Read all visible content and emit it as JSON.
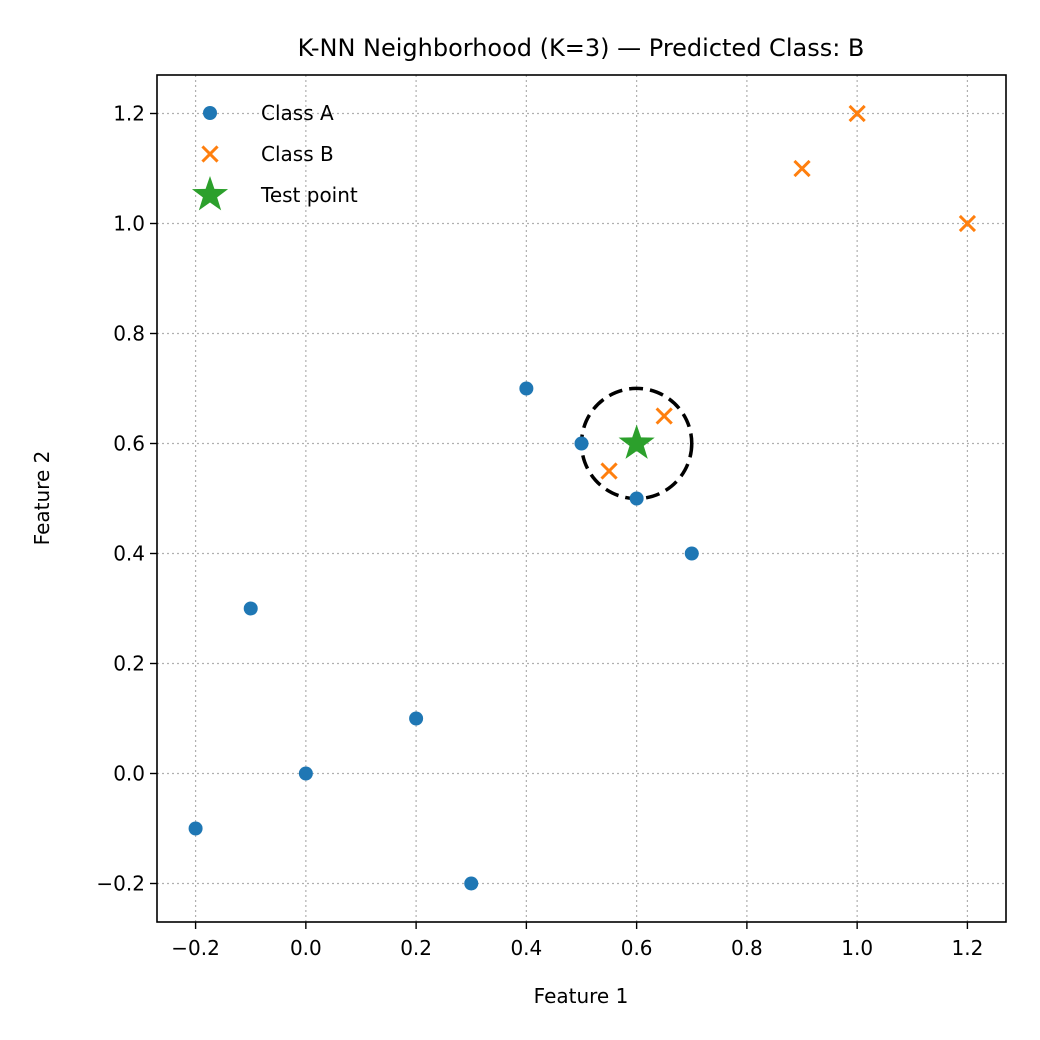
{
  "chart_data": {
    "type": "scatter",
    "title": "K-NN Neighborhood (K=3) — Predicted Class: B",
    "xlabel": "Feature 1",
    "ylabel": "Feature 2",
    "xlim": [
      -0.27,
      1.27
    ],
    "ylim": [
      -0.27,
      1.27
    ],
    "xticks": [
      -0.2,
      0.0,
      0.2,
      0.4,
      0.6,
      0.8,
      1.0,
      1.2
    ],
    "yticks": [
      -0.2,
      0.0,
      0.2,
      0.4,
      0.6,
      0.8,
      1.0,
      1.2
    ],
    "xtick_labels": [
      "−0.2",
      "0.0",
      "0.2",
      "0.4",
      "0.6",
      "0.8",
      "1.0",
      "1.2"
    ],
    "ytick_labels": [
      "−0.2",
      "0.0",
      "0.2",
      "0.4",
      "0.6",
      "0.8",
      "1.0",
      "1.2"
    ],
    "grid": true,
    "legend_position": "top-left",
    "series": [
      {
        "name": "Class A",
        "marker": "circle",
        "color": "#1f77b4",
        "points": [
          [
            -0.2,
            -0.1
          ],
          [
            0.0,
            0.0
          ],
          [
            0.2,
            0.1
          ],
          [
            0.3,
            -0.2
          ],
          [
            -0.1,
            0.3
          ],
          [
            0.4,
            0.7
          ],
          [
            0.5,
            0.6
          ],
          [
            0.6,
            0.5
          ],
          [
            0.7,
            0.4
          ]
        ]
      },
      {
        "name": "Class B",
        "marker": "x",
        "color": "#ff7f0e",
        "points": [
          [
            0.55,
            0.55
          ],
          [
            0.65,
            0.65
          ],
          [
            0.9,
            1.1
          ],
          [
            1.0,
            1.2
          ],
          [
            1.2,
            1.0
          ]
        ]
      },
      {
        "name": "Test point",
        "marker": "star",
        "color": "#2ca02c",
        "points": [
          [
            0.6,
            0.6
          ]
        ]
      }
    ],
    "neighborhood_circle": {
      "center": [
        0.6,
        0.6
      ],
      "radius": 0.1,
      "style": "dashed",
      "color": "#000000"
    }
  }
}
